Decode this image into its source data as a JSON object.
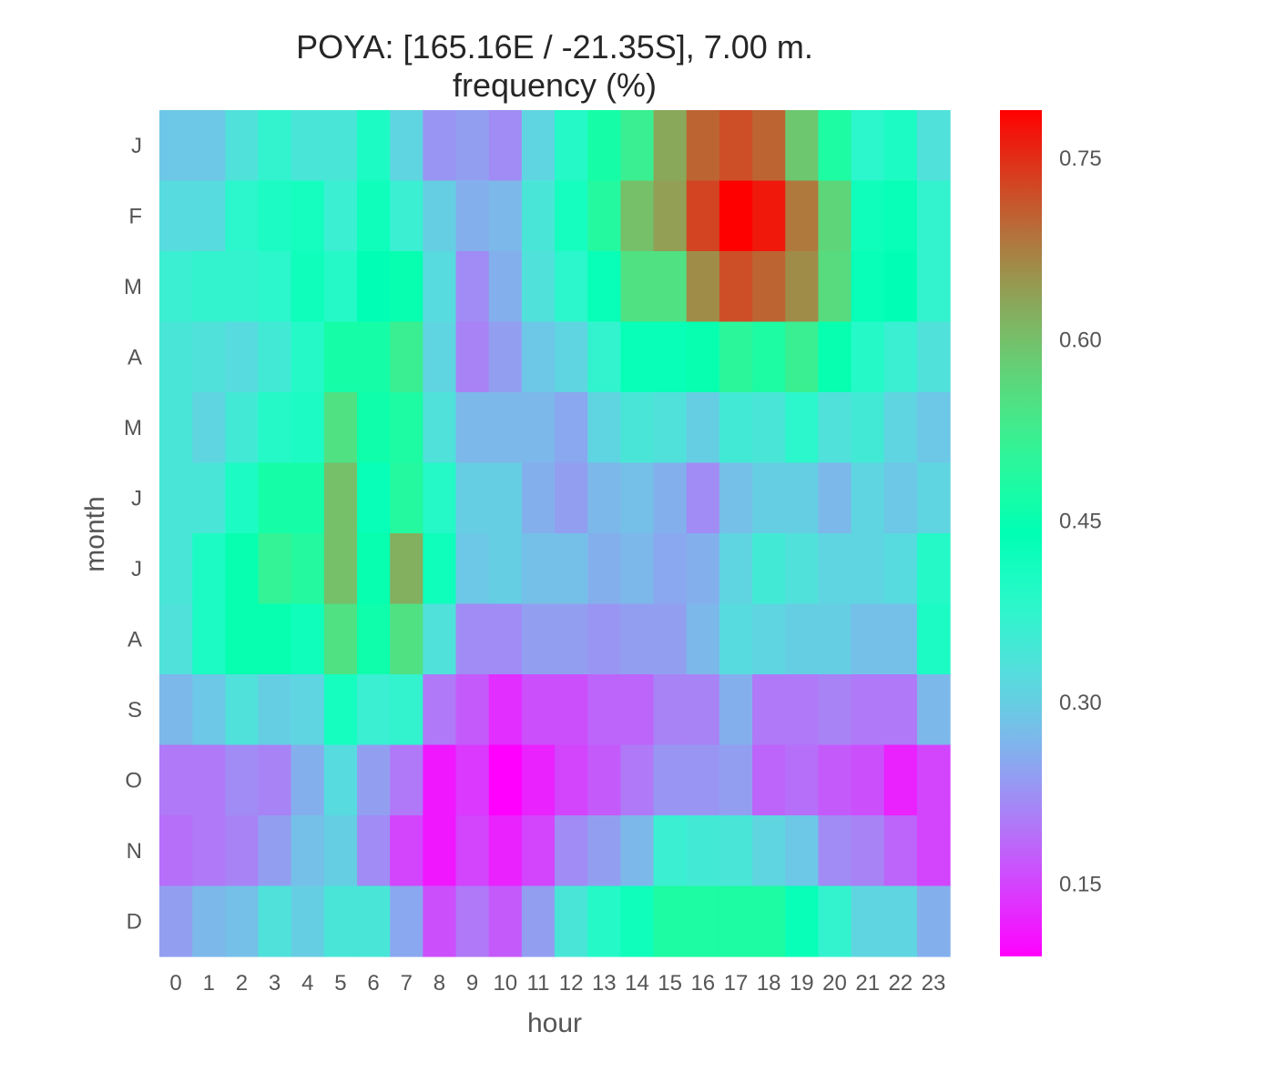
{
  "chart_data": {
    "type": "heatmap",
    "title": "POYA: [165.16E / -21.35S], 7.00 m.",
    "subtitle": "frequency (%)",
    "xlabel": "hour",
    "ylabel": "month",
    "x_categories": [
      "0",
      "1",
      "2",
      "3",
      "4",
      "5",
      "6",
      "7",
      "8",
      "9",
      "10",
      "11",
      "12",
      "13",
      "14",
      "15",
      "16",
      "17",
      "18",
      "19",
      "20",
      "21",
      "22",
      "23"
    ],
    "y_categories": [
      "J",
      "F",
      "M",
      "A",
      "M",
      "J",
      "J",
      "A",
      "S",
      "O",
      "N",
      "D"
    ],
    "values": [
      [
        0.29,
        0.29,
        0.33,
        0.37,
        0.34,
        0.34,
        0.4,
        0.31,
        0.23,
        0.24,
        0.22,
        0.31,
        0.39,
        0.47,
        0.52,
        0.63,
        0.7,
        0.72,
        0.7,
        0.59,
        0.48,
        0.38,
        0.4,
        0.33
      ],
      [
        0.32,
        0.32,
        0.38,
        0.4,
        0.41,
        0.36,
        0.42,
        0.36,
        0.3,
        0.26,
        0.27,
        0.34,
        0.41,
        0.49,
        0.6,
        0.64,
        0.73,
        0.79,
        0.77,
        0.68,
        0.57,
        0.42,
        0.43,
        0.37
      ],
      [
        0.36,
        0.37,
        0.37,
        0.38,
        0.42,
        0.39,
        0.44,
        0.45,
        0.32,
        0.22,
        0.26,
        0.33,
        0.38,
        0.43,
        0.55,
        0.55,
        0.66,
        0.72,
        0.7,
        0.66,
        0.56,
        0.43,
        0.44,
        0.37
      ],
      [
        0.34,
        0.33,
        0.32,
        0.35,
        0.39,
        0.47,
        0.47,
        0.52,
        0.31,
        0.21,
        0.24,
        0.29,
        0.31,
        0.37,
        0.43,
        0.43,
        0.45,
        0.5,
        0.48,
        0.52,
        0.45,
        0.39,
        0.36,
        0.33
      ],
      [
        0.34,
        0.31,
        0.35,
        0.39,
        0.4,
        0.55,
        0.46,
        0.48,
        0.33,
        0.27,
        0.27,
        0.27,
        0.25,
        0.31,
        0.34,
        0.33,
        0.3,
        0.35,
        0.34,
        0.38,
        0.33,
        0.35,
        0.31,
        0.29
      ],
      [
        0.34,
        0.34,
        0.4,
        0.47,
        0.47,
        0.6,
        0.43,
        0.49,
        0.39,
        0.3,
        0.3,
        0.26,
        0.24,
        0.27,
        0.28,
        0.26,
        0.22,
        0.28,
        0.3,
        0.3,
        0.27,
        0.31,
        0.29,
        0.31
      ],
      [
        0.34,
        0.4,
        0.45,
        0.51,
        0.49,
        0.6,
        0.45,
        0.62,
        0.42,
        0.29,
        0.3,
        0.28,
        0.28,
        0.26,
        0.27,
        0.25,
        0.26,
        0.31,
        0.35,
        0.33,
        0.31,
        0.31,
        0.32,
        0.39
      ],
      [
        0.33,
        0.4,
        0.45,
        0.45,
        0.42,
        0.55,
        0.46,
        0.55,
        0.33,
        0.22,
        0.22,
        0.24,
        0.24,
        0.23,
        0.24,
        0.24,
        0.27,
        0.32,
        0.31,
        0.3,
        0.3,
        0.28,
        0.28,
        0.4
      ],
      [
        0.27,
        0.29,
        0.33,
        0.3,
        0.31,
        0.41,
        0.36,
        0.37,
        0.2,
        0.17,
        0.13,
        0.16,
        0.16,
        0.18,
        0.18,
        0.21,
        0.21,
        0.26,
        0.2,
        0.2,
        0.21,
        0.2,
        0.2,
        0.27
      ],
      [
        0.2,
        0.2,
        0.22,
        0.21,
        0.26,
        0.32,
        0.24,
        0.2,
        0.11,
        0.14,
        0.08,
        0.12,
        0.15,
        0.17,
        0.2,
        0.23,
        0.23,
        0.24,
        0.18,
        0.19,
        0.17,
        0.16,
        0.12,
        0.15
      ],
      [
        0.19,
        0.2,
        0.21,
        0.24,
        0.28,
        0.3,
        0.22,
        0.15,
        0.11,
        0.15,
        0.12,
        0.15,
        0.22,
        0.24,
        0.27,
        0.36,
        0.35,
        0.34,
        0.31,
        0.29,
        0.22,
        0.21,
        0.18,
        0.15
      ],
      [
        0.24,
        0.27,
        0.28,
        0.33,
        0.3,
        0.34,
        0.34,
        0.25,
        0.16,
        0.2,
        0.17,
        0.24,
        0.34,
        0.39,
        0.42,
        0.48,
        0.48,
        0.48,
        0.48,
        0.43,
        0.37,
        0.31,
        0.31,
        0.26
      ]
    ],
    "colormap": "rainbow",
    "vmin": 0.09,
    "vmax": 0.79,
    "colorbar_ticks": [
      "0.15",
      "0.30",
      "0.45",
      "0.60",
      "0.75"
    ],
    "grid": false
  }
}
